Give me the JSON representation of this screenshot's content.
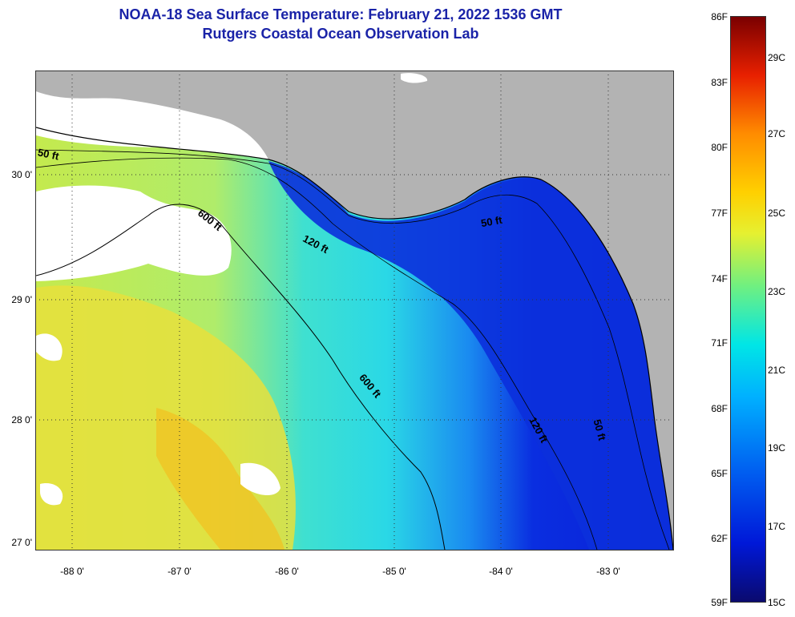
{
  "header": {
    "title": "NOAA-18 Sea Surface Temperature:  February 21, 2022 1536 GMT",
    "subtitle": "Rutgers Coastal Ocean Observation Lab"
  },
  "map": {
    "lat_labels": [
      "30 0'",
      "29 0'",
      "28 0'",
      "27 0'"
    ],
    "lon_labels": [
      "-88 0'",
      "-87 0'",
      "-86 0'",
      "-85 0'",
      "-84 0'",
      "-83 0'"
    ],
    "contour_labels": {
      "c50_west": "50 ft",
      "c600_north": "600 ft",
      "c120_north": "120 ft",
      "c50_east": "50 ft",
      "c600_south": "600 ft",
      "c120_south": "120 ft",
      "c50_south": "50 ft"
    },
    "colors": {
      "land": "#b3b3b3",
      "cloud": "#ffffff",
      "cold_water": "#0a1fd6",
      "warm_water": "#e8e83a"
    }
  },
  "colorbar": {
    "fahrenheit": [
      "86F",
      "83F",
      "80F",
      "77F",
      "74F",
      "71F",
      "68F",
      "65F",
      "62F",
      "59F"
    ],
    "celsius": [
      "29C",
      "27C",
      "25C",
      "23C",
      "21C",
      "19C",
      "17C",
      "15C"
    ]
  }
}
